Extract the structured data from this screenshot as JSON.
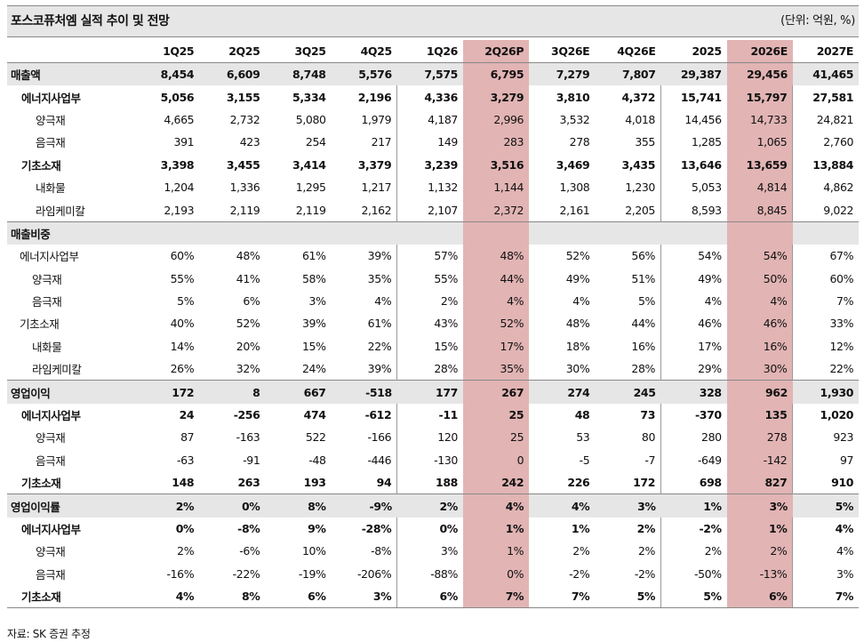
{
  "title": "포스코퓨처엠 실적 추이 및 전망",
  "unit": "(단위: 억원, %)",
  "header": [
    "",
    "1Q25",
    "2Q25",
    "3Q25",
    "4Q25",
    "1Q26",
    "2Q26P",
    "3Q26E",
    "4Q26E",
    "2025",
    "2026E",
    "2027E"
  ],
  "highlight_columns": [
    "2Q26P",
    "2026E"
  ],
  "rows": [
    {
      "label": "매출액",
      "style": "section",
      "values": [
        "8,454",
        "6,609",
        "8,748",
        "5,576",
        "7,575",
        "6,795",
        "7,279",
        "7,807",
        "29,387",
        "29,456",
        "41,465"
      ]
    },
    {
      "label": "에너지사업부",
      "style": "lvl1 bold",
      "values": [
        "5,056",
        "3,155",
        "5,334",
        "2,196",
        "4,336",
        "3,279",
        "3,810",
        "4,372",
        "15,741",
        "15,797",
        "27,581"
      ]
    },
    {
      "label": "양극재",
      "style": "lvl2",
      "values": [
        "4,665",
        "2,732",
        "5,080",
        "1,979",
        "4,187",
        "2,996",
        "3,532",
        "4,018",
        "14,456",
        "14,733",
        "24,821"
      ]
    },
    {
      "label": "음극재",
      "style": "lvl2",
      "values": [
        "391",
        "423",
        "254",
        "217",
        "149",
        "283",
        "278",
        "355",
        "1,285",
        "1,065",
        "2,760"
      ]
    },
    {
      "label": "기초소재",
      "style": "lvl1 bold",
      "values": [
        "3,398",
        "3,455",
        "3,414",
        "3,379",
        "3,239",
        "3,516",
        "3,469",
        "3,435",
        "13,646",
        "13,659",
        "13,884"
      ]
    },
    {
      "label": "내화물",
      "style": "lvl2",
      "values": [
        "1,204",
        "1,336",
        "1,295",
        "1,217",
        "1,132",
        "1,144",
        "1,308",
        "1,230",
        "5,053",
        "4,814",
        "4,862"
      ]
    },
    {
      "label": "라임케미칼",
      "style": "lvl2",
      "values": [
        "2,193",
        "2,119",
        "2,119",
        "2,162",
        "2,107",
        "2,372",
        "2,161",
        "2,205",
        "8,593",
        "8,845",
        "9,022"
      ]
    },
    {
      "label": "매출비중",
      "style": "section sec-start",
      "values": [
        "",
        "",
        "",
        "",
        "",
        "",
        "",
        "",
        "",
        "",
        ""
      ]
    },
    {
      "label": "에너지사업부",
      "style": "lvl1p",
      "values": [
        "60%",
        "48%",
        "61%",
        "39%",
        "57%",
        "48%",
        "52%",
        "56%",
        "54%",
        "54%",
        "67%"
      ]
    },
    {
      "label": "양극재",
      "style": "lvl2p",
      "values": [
        "55%",
        "41%",
        "58%",
        "35%",
        "55%",
        "44%",
        "49%",
        "51%",
        "49%",
        "50%",
        "60%"
      ]
    },
    {
      "label": "음극재",
      "style": "lvl2p",
      "values": [
        "5%",
        "6%",
        "3%",
        "4%",
        "2%",
        "4%",
        "4%",
        "5%",
        "4%",
        "4%",
        "7%"
      ]
    },
    {
      "label": "기초소재",
      "style": "lvl1p",
      "values": [
        "40%",
        "52%",
        "39%",
        "61%",
        "43%",
        "52%",
        "48%",
        "44%",
        "46%",
        "46%",
        "33%"
      ]
    },
    {
      "label": "내화물",
      "style": "lvl2p",
      "values": [
        "14%",
        "20%",
        "15%",
        "22%",
        "15%",
        "17%",
        "18%",
        "16%",
        "17%",
        "16%",
        "12%"
      ]
    },
    {
      "label": "라임케미칼",
      "style": "lvl2p",
      "values": [
        "26%",
        "32%",
        "24%",
        "39%",
        "28%",
        "35%",
        "30%",
        "28%",
        "29%",
        "30%",
        "22%"
      ]
    },
    {
      "label": "영업이익",
      "style": "section sec-start",
      "values": [
        "172",
        "8",
        "667",
        "-518",
        "177",
        "267",
        "274",
        "245",
        "328",
        "962",
        "1,930"
      ]
    },
    {
      "label": "에너지사업부",
      "style": "lvl1 bold",
      "values": [
        "24",
        "-256",
        "474",
        "-612",
        "-11",
        "25",
        "48",
        "73",
        "-370",
        "135",
        "1,020"
      ]
    },
    {
      "label": "양극재",
      "style": "lvl2",
      "values": [
        "87",
        "-163",
        "522",
        "-166",
        "120",
        "25",
        "53",
        "80",
        "280",
        "278",
        "923"
      ]
    },
    {
      "label": "음극재",
      "style": "lvl2",
      "values": [
        "-63",
        "-91",
        "-48",
        "-446",
        "-130",
        "0",
        "-5",
        "-7",
        "-649",
        "-142",
        "97"
      ]
    },
    {
      "label": "기초소재",
      "style": "lvl1 bold",
      "values": [
        "148",
        "263",
        "193",
        "94",
        "188",
        "242",
        "226",
        "172",
        "698",
        "827",
        "910"
      ]
    },
    {
      "label": "영업이익률",
      "style": "section sec-start",
      "values": [
        "2%",
        "0%",
        "8%",
        "-9%",
        "2%",
        "4%",
        "4%",
        "3%",
        "1%",
        "3%",
        "5%"
      ]
    },
    {
      "label": "에너지사업부",
      "style": "lvl1 bold",
      "values": [
        "0%",
        "-8%",
        "9%",
        "-28%",
        "0%",
        "1%",
        "1%",
        "2%",
        "-2%",
        "1%",
        "4%"
      ]
    },
    {
      "label": "양극재",
      "style": "lvl2",
      "values": [
        "2%",
        "-6%",
        "10%",
        "-8%",
        "3%",
        "1%",
        "2%",
        "2%",
        "2%",
        "2%",
        "4%"
      ]
    },
    {
      "label": "음극재",
      "style": "lvl2",
      "values": [
        "-16%",
        "-22%",
        "-19%",
        "-206%",
        "-88%",
        "0%",
        "-2%",
        "-2%",
        "-50%",
        "-13%",
        "3%"
      ]
    },
    {
      "label": "기초소재",
      "style": "lvl1 bold",
      "values": [
        "4%",
        "8%",
        "6%",
        "3%",
        "6%",
        "7%",
        "7%",
        "5%",
        "5%",
        "6%",
        "7%"
      ]
    }
  ],
  "source": "자료: SK 증권 추정",
  "colors": {
    "section_bg": "#e6e6e6",
    "highlight": "#e2b4b4"
  }
}
